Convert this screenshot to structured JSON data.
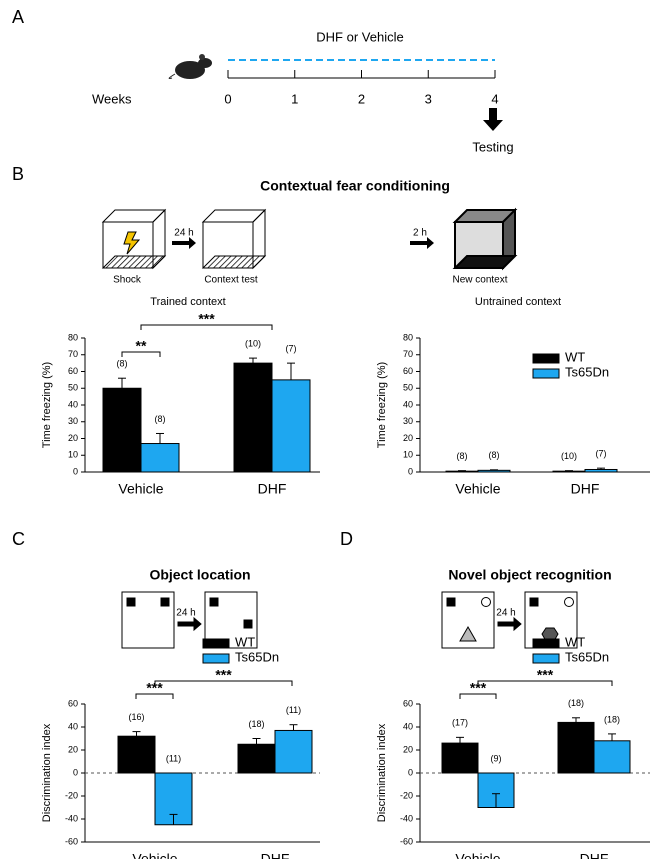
{
  "panel_labels": [
    "A",
    "B",
    "C",
    "D"
  ],
  "timeline": {
    "label": "DHF or Vehicle",
    "axis_label": "Weeks",
    "ticks": [
      "0",
      "1",
      "2",
      "3",
      "4"
    ],
    "arrow_label": "Testing"
  },
  "panel_b": {
    "title": "Contextual fear conditioning",
    "left": {
      "step1": "Shock",
      "interval": "24 h",
      "step2": "Context test",
      "caption": "Trained context"
    },
    "right": {
      "interval": "2 h",
      "step": "New context",
      "caption": "Untrained context"
    }
  },
  "panel_c": {
    "interval": "24 h"
  },
  "panel_d": {
    "interval": "24 h"
  },
  "chart_data": [
    {
      "type": "bar",
      "y_label": "Time freezing (%)",
      "categories": [
        "Vehicle",
        "DHF"
      ],
      "ylim": [
        0,
        80
      ],
      "yticks": [
        0,
        10,
        20,
        30,
        40,
        50,
        60,
        70,
        80
      ],
      "legend": false,
      "zero_line": false,
      "significance": [
        "**",
        "***"
      ],
      "series": [
        {
          "name": "WT",
          "color": "#000000",
          "values": [
            50,
            65
          ],
          "errors": [
            6,
            3
          ],
          "n_labels": [
            "(8)",
            "(10)"
          ]
        },
        {
          "name": "Ts65Dn",
          "color": "#1ea7f0",
          "values": [
            17,
            55
          ],
          "errors": [
            6,
            10
          ],
          "n_labels": [
            "(8)",
            "(7)"
          ]
        }
      ]
    },
    {
      "type": "bar",
      "y_label": "Time freezing (%)",
      "categories": [
        "Vehicle",
        "DHF"
      ],
      "ylim": [
        0,
        80
      ],
      "yticks": [
        0,
        10,
        20,
        30,
        40,
        50,
        60,
        70,
        80
      ],
      "legend": true,
      "zero_line": false,
      "significance": [],
      "series": [
        {
          "name": "WT",
          "color": "#000000",
          "values": [
            0.5,
            0.5
          ],
          "errors": [
            0.3,
            0.3
          ],
          "n_labels": [
            "(8)",
            "(10)"
          ]
        },
        {
          "name": "Ts65Dn",
          "color": "#1ea7f0",
          "values": [
            1,
            1.5
          ],
          "errors": [
            0.3,
            0.8
          ],
          "n_labels": [
            "(8)",
            "(7)"
          ]
        }
      ]
    },
    {
      "type": "bar",
      "title": "Object location",
      "y_label": "Discrimination index",
      "categories": [
        "Vehicle",
        "DHF"
      ],
      "ylim": [
        -60,
        60
      ],
      "yticks": [
        -60,
        -40,
        -20,
        0,
        20,
        40,
        60
      ],
      "legend": true,
      "zero_line": true,
      "significance": [
        "***",
        "***"
      ],
      "series": [
        {
          "name": "WT",
          "color": "#000000",
          "values": [
            32,
            25
          ],
          "errors": [
            4,
            5
          ],
          "n_labels": [
            "(16)",
            "(18)"
          ]
        },
        {
          "name": "Ts65Dn",
          "color": "#1ea7f0",
          "values": [
            -45,
            37
          ],
          "errors": [
            9,
            5
          ],
          "n_labels": [
            "(11)",
            "(11)"
          ]
        }
      ]
    },
    {
      "type": "bar",
      "title": "Novel object recognition",
      "y_label": "Discrimination index",
      "categories": [
        "Vehicle",
        "DHF"
      ],
      "ylim": [
        -60,
        60
      ],
      "yticks": [
        -60,
        -40,
        -20,
        0,
        20,
        40,
        60
      ],
      "legend": true,
      "zero_line": true,
      "significance": [
        "***",
        "***"
      ],
      "series": [
        {
          "name": "WT",
          "color": "#000000",
          "values": [
            26,
            44
          ],
          "errors": [
            5,
            4
          ],
          "n_labels": [
            "(17)",
            "(18)"
          ]
        },
        {
          "name": "Ts65Dn",
          "color": "#1ea7f0",
          "values": [
            -30,
            28
          ],
          "errors": [
            12,
            6
          ],
          "n_labels": [
            "(9)",
            "(18)"
          ]
        }
      ]
    }
  ]
}
